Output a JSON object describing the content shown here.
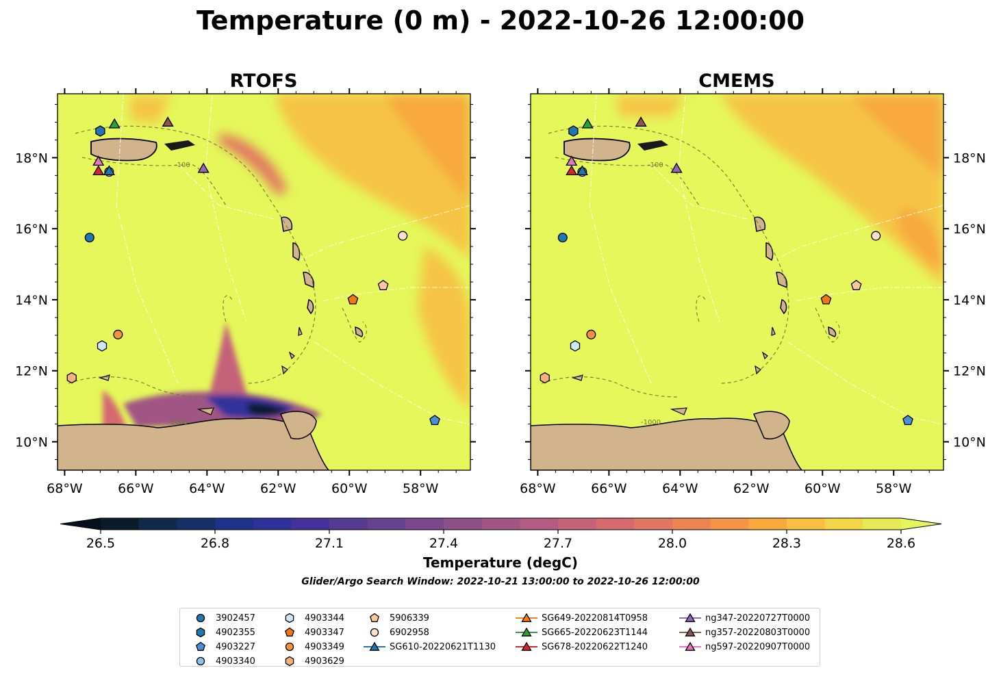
{
  "figure": {
    "title": "Temperature (0 m) - 2022-10-26 12:00:00",
    "search_window": "Glider/Argo Search Window: 2022-10-21 13:00:00 to 2022-10-26 12:00:00"
  },
  "colorbar": {
    "label": "Temperature (degC)",
    "min": 26.5,
    "max": 28.6,
    "extend": "both",
    "ticks": [
      "26.5",
      "26.8",
      "27.1",
      "27.4",
      "27.7",
      "28.0",
      "28.3",
      "28.6"
    ],
    "colors": [
      "#0b1b2a",
      "#102a47",
      "#172f66",
      "#1f3189",
      "#30309b",
      "#443098",
      "#563a92",
      "#67428f",
      "#7a498c",
      "#8c4f88",
      "#a05585",
      "#b35b80",
      "#c4627a",
      "#d46a6f",
      "#e17661",
      "#ec8352",
      "#f39544",
      "#f7a93e",
      "#f8bf40",
      "#f2d648",
      "#e6ea57"
    ]
  },
  "chart_data": [
    {
      "type": "heatmap",
      "title": "RTOFS",
      "x_ticks": [
        "68°W",
        "66°W",
        "64°W",
        "62°W",
        "60°W",
        "58°W"
      ],
      "y_ticks": [
        "10°N",
        "12°N",
        "14°N",
        "16°N",
        "18°N"
      ],
      "xlim": [
        -68.2,
        -56.6
      ],
      "ylim": [
        9.2,
        19.8
      ],
      "y_tick_side": "left",
      "background_color": "#e5f75a",
      "contours": [
        "-100",
        "-1000"
      ]
    },
    {
      "type": "heatmap",
      "title": "CMEMS",
      "x_ticks": [
        "68°W",
        "66°W",
        "64°W",
        "62°W",
        "60°W",
        "58°W"
      ],
      "y_ticks": [
        "10°N",
        "12°N",
        "14°N",
        "16°N",
        "18°N"
      ],
      "xlim": [
        -68.2,
        -56.6
      ],
      "ylim": [
        9.2,
        19.8
      ],
      "y_tick_side": "right",
      "background_color": "#e5f75a",
      "contours": [
        "-100",
        "-1000"
      ]
    }
  ],
  "observations": [
    {
      "id": "3902457",
      "marker": "circle",
      "color": "#1f77b4",
      "lon": -67.3,
      "lat": 15.75
    },
    {
      "id": "4902355",
      "marker": "hexagon",
      "color": "#1f77b4",
      "lon": -67.0,
      "lat": 18.75
    },
    {
      "id": "4903227",
      "marker": "pentagon",
      "color": "#4a90d9",
      "lon": -57.6,
      "lat": 10.6
    },
    {
      "id": "4903340",
      "marker": "circle",
      "color": "#8fc3ec",
      "lon": -66.75,
      "lat": 17.6
    },
    {
      "id": "4903344",
      "marker": "hexagon",
      "color": "#cfe8f9",
      "lon": -66.95,
      "lat": 12.7
    },
    {
      "id": "4903347",
      "marker": "pentagon",
      "color": "#f07a10",
      "lon": -59.9,
      "lat": 14.0
    },
    {
      "id": "4903349",
      "marker": "circle",
      "color": "#f5923a",
      "lon": -66.5,
      "lat": 13.02
    },
    {
      "id": "4903629",
      "marker": "hexagon",
      "color": "#f7b27a",
      "lon": -67.8,
      "lat": 11.8
    },
    {
      "id": "5906339",
      "marker": "pentagon",
      "color": "#fbc89a",
      "lon": -59.05,
      "lat": 14.4
    },
    {
      "id": "6902958",
      "marker": "circle",
      "color": "#fde0c8",
      "lon": -58.5,
      "lat": 15.8
    },
    {
      "id": "SG610-20220621T1130",
      "marker": "triangle",
      "color": "#1f77b4",
      "lon": -66.75,
      "lat": 17.63,
      "line": true
    },
    {
      "id": "SG649-20220814T0958",
      "marker": "triangle",
      "color": "#ff7f0e",
      "lon": null,
      "lat": null,
      "line": true
    },
    {
      "id": "SG665-20220623T1144",
      "marker": "triangle",
      "color": "#2ca02c",
      "lon": -66.6,
      "lat": 18.95,
      "line": true
    },
    {
      "id": "SG678-20220622T1240",
      "marker": "triangle",
      "color": "#d62728",
      "lon": -67.05,
      "lat": 17.63,
      "line": true
    },
    {
      "id": "ng347-20220727T0000",
      "marker": "triangle",
      "color": "#9467bd",
      "lon": -64.1,
      "lat": 17.7,
      "line": true
    },
    {
      "id": "ng357-20220803T0000",
      "marker": "triangle",
      "color": "#8c564b",
      "lon": -65.1,
      "lat": 19.0,
      "line": true
    },
    {
      "id": "ng597-20220907T0000",
      "marker": "triangle",
      "color": "#e377c2",
      "lon": -67.05,
      "lat": 17.9,
      "line": true
    }
  ]
}
